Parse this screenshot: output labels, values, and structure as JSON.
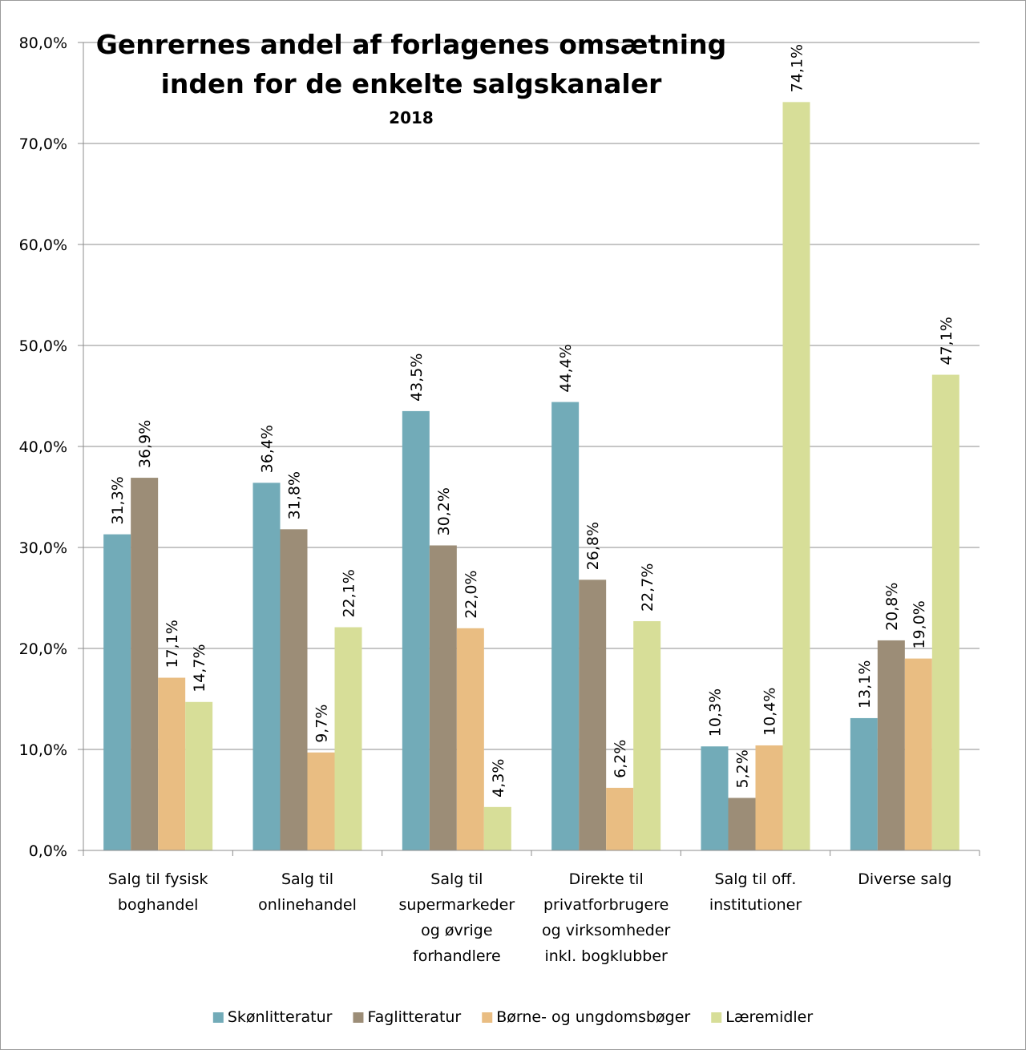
{
  "chart_data": {
    "type": "bar",
    "title": "Genrernes andel af forlagenes omsætning",
    "title_line2": "inden for de enkelte salgskanaler",
    "subtitle": "2018",
    "categories": [
      [
        "Salg til fysisk",
        "boghandel"
      ],
      [
        "Salg til",
        "onlinehandel"
      ],
      [
        "Salg til",
        "supermarkeder",
        "og øvrige",
        "forhandlere"
      ],
      [
        "Direkte til",
        "privatforbrugere",
        "og virksomheder",
        "inkl. bogklubber"
      ],
      [
        "Salg til off.",
        "institutioner"
      ],
      [
        "Diverse salg"
      ]
    ],
    "series": [
      {
        "name": "Skønlitteratur",
        "color": "#72abb8",
        "values": [
          31.3,
          36.4,
          43.5,
          44.4,
          10.3,
          13.1
        ],
        "labels": [
          "31,3%",
          "36,4%",
          "43,5%",
          "44,4%",
          "10,3%",
          "13,1%"
        ]
      },
      {
        "name": "Faglitteratur",
        "color": "#9c8d77",
        "values": [
          36.9,
          31.8,
          30.2,
          26.8,
          5.2,
          20.8
        ],
        "labels": [
          "36,9%",
          "31,8%",
          "30,2%",
          "26,8%",
          "5,2%",
          "20,8%"
        ]
      },
      {
        "name": "Børne- og ungdomsbøger",
        "color": "#e9bd82",
        "values": [
          17.1,
          9.7,
          22.0,
          6.2,
          10.4,
          19.0
        ],
        "labels": [
          "17,1%",
          "9,7%",
          "22,0%",
          "6,2%",
          "10,4%",
          "19,0%"
        ]
      },
      {
        "name": "Læremidler",
        "color": "#d7de98",
        "values": [
          14.7,
          22.1,
          4.3,
          22.7,
          74.1,
          47.1
        ],
        "labels": [
          "14,7%",
          "22,1%",
          "4,3%",
          "22,7%",
          "74,1%",
          "47,1%"
        ]
      }
    ],
    "ylim": [
      0,
      80
    ],
    "yticks": [
      "0,0%",
      "10,0%",
      "20,0%",
      "30,0%",
      "40,0%",
      "50,0%",
      "60,0%",
      "70,0%",
      "80,0%"
    ],
    "grid": true,
    "legend_position": "bottom"
  }
}
